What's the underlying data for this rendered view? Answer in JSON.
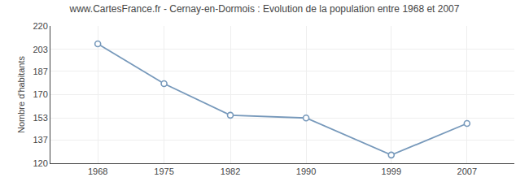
{
  "chart_data": {
    "type": "line",
    "title": "www.CartesFrance.fr - Cernay-en-Dormois : Evolution de la population entre 1968 et 2007",
    "y_label": "Nombre d'habitants",
    "x": [
      1968,
      1975,
      1982,
      1990,
      1999,
      2007
    ],
    "values": [
      207,
      178,
      155,
      153,
      126,
      149
    ],
    "color": "#7799bb",
    "marker": "circle",
    "xlim": [
      1963,
      2012
    ],
    "xticks": [
      1968,
      1975,
      1982,
      1990,
      1999,
      2007
    ],
    "ylim": [
      120,
      220
    ],
    "yticks": [
      120,
      137,
      153,
      170,
      187,
      203,
      220
    ],
    "grid": true
  }
}
